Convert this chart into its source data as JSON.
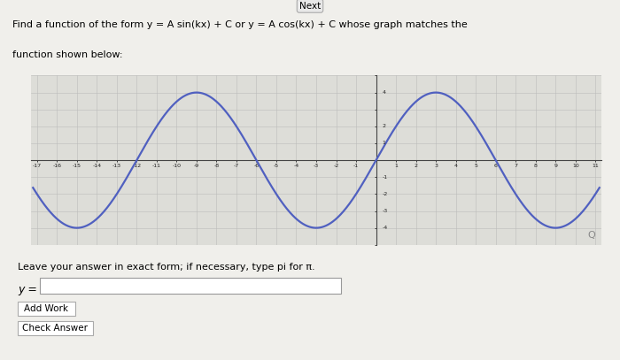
{
  "title_line1": "Find a function of the form y = A sin(kx) + C or y = A cos(kx) + C whose graph matches the",
  "title_line2": "function shown below:",
  "next_button": "Next",
  "curve_color": "#5060c0",
  "curve_linewidth": 1.6,
  "A": 4,
  "k_num": 1,
  "k_den": 6,
  "C": 0,
  "func_type": "sin",
  "x_min": -17,
  "x_max": 11,
  "y_min": -5,
  "y_max": 5,
  "x_tick_step": 1,
  "y_tick_step": 1,
  "y_label_ticks": [
    4,
    2,
    1,
    -1,
    -2,
    -3,
    -4
  ],
  "x_label_every": 1,
  "grid_color": "#bbbbbb",
  "grid_minor_color": "#dddddd",
  "bg_color": "#f0efeb",
  "plot_bg": "#ddddd8",
  "leave_text": "Leave your answer in exact form; if necessary, type pi for π.",
  "add_work_text": "Add Work",
  "check_answer_text": "Check Answer"
}
